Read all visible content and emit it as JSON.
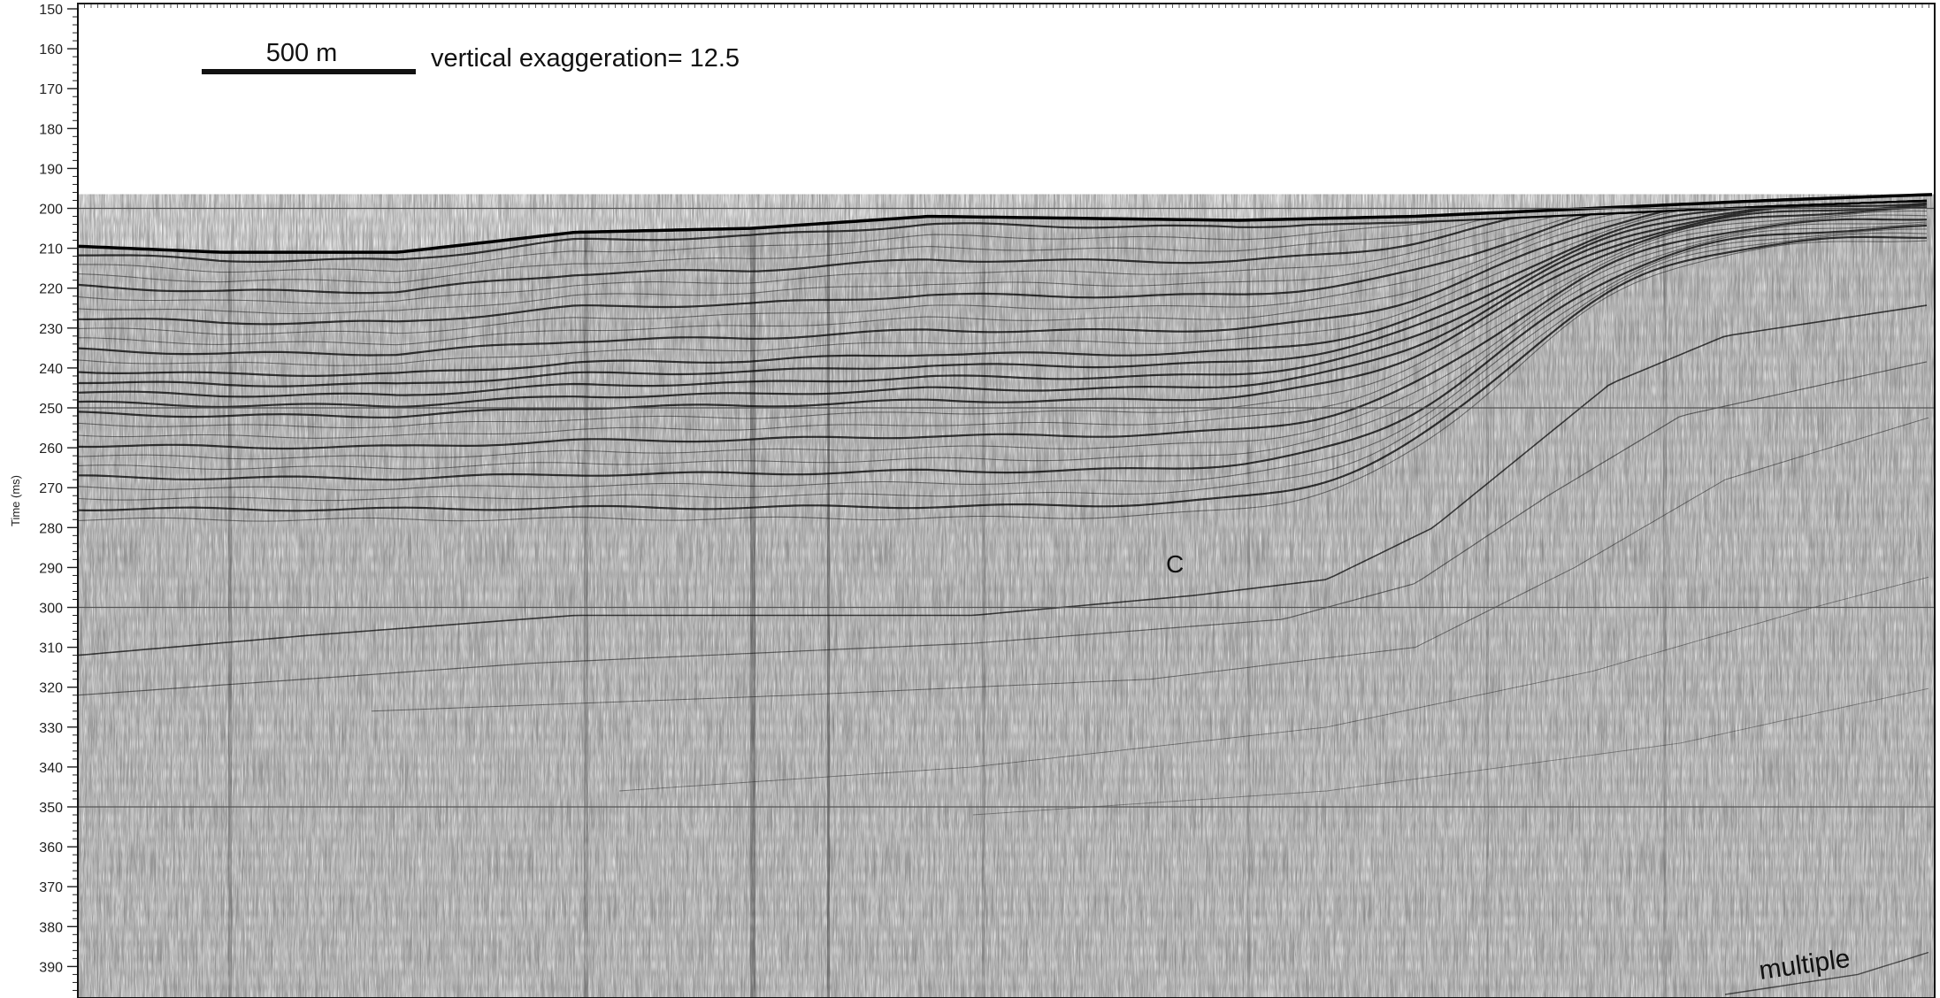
{
  "profile": {
    "y_axis": {
      "label": "Time (ms)",
      "min": 150,
      "max": 400,
      "major_step": 10,
      "ticks": [
        "150",
        "160",
        "170",
        "180",
        "190",
        "200",
        "210",
        "220",
        "230",
        "240",
        "250",
        "260",
        "270",
        "280",
        "290",
        "300",
        "310",
        "320",
        "330",
        "340",
        "350",
        "360",
        "370",
        "380",
        "390"
      ],
      "reference_lines": [
        200,
        250,
        300,
        350
      ]
    },
    "scale_bar": {
      "label": "500 m"
    },
    "vertical_exaggeration": "vertical exaggeration= 12.5",
    "annotations": {
      "c_label": "C",
      "multiple_label": "multiple"
    },
    "colors": {
      "ink": "#111111",
      "background": "#ffffff",
      "grid": "#555555"
    }
  }
}
